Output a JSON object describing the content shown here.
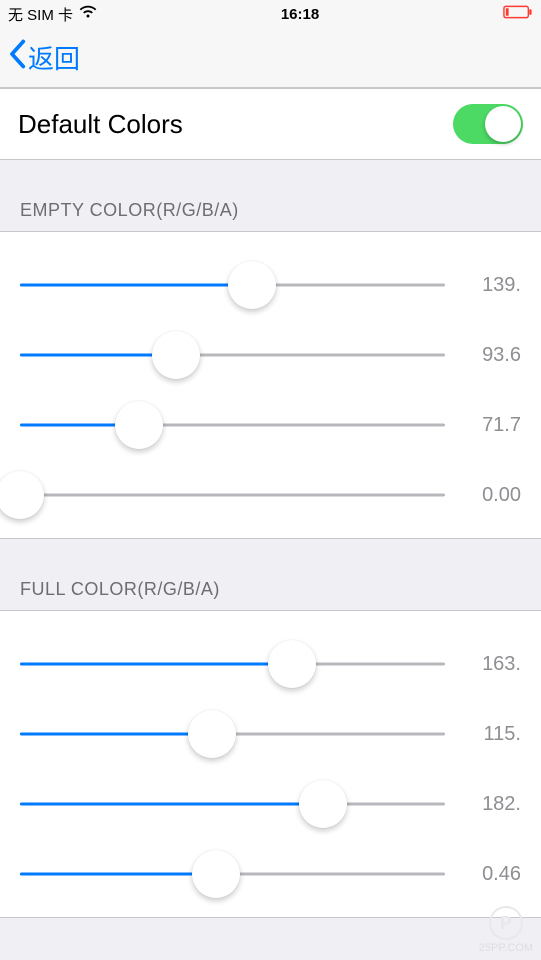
{
  "status": {
    "carrier": "无 SIM 卡",
    "time": "16:18"
  },
  "nav": {
    "back_label": "返回"
  },
  "toggle": {
    "label": "Default Colors",
    "on": true
  },
  "sections": {
    "empty": {
      "header": "EMPTY COLOR(R/G/B/A)",
      "sliders": [
        {
          "value_text": "139.",
          "percent": 54.5
        },
        {
          "value_text": "93.6",
          "percent": 36.7
        },
        {
          "value_text": "71.7",
          "percent": 28.1
        },
        {
          "value_text": "0.00",
          "percent": 0.0
        }
      ]
    },
    "full": {
      "header": "FULL COLOR(R/G/B/A)",
      "sliders": [
        {
          "value_text": "163.",
          "percent": 63.9
        },
        {
          "value_text": "115.",
          "percent": 45.1
        },
        {
          "value_text": "182.",
          "percent": 71.4
        },
        {
          "value_text": "0.46",
          "percent": 46.0
        }
      ]
    }
  },
  "colors": {
    "accent": "#007aff",
    "switch_on": "#4cd964",
    "track": "#b8b8bc",
    "bg": "#efeff4",
    "header_text": "#6d6d72",
    "value_text": "#8e8e93",
    "battery_stroke": "#ff3b30"
  },
  "watermark": {
    "text": "25PP.COM",
    "badge": "P"
  }
}
